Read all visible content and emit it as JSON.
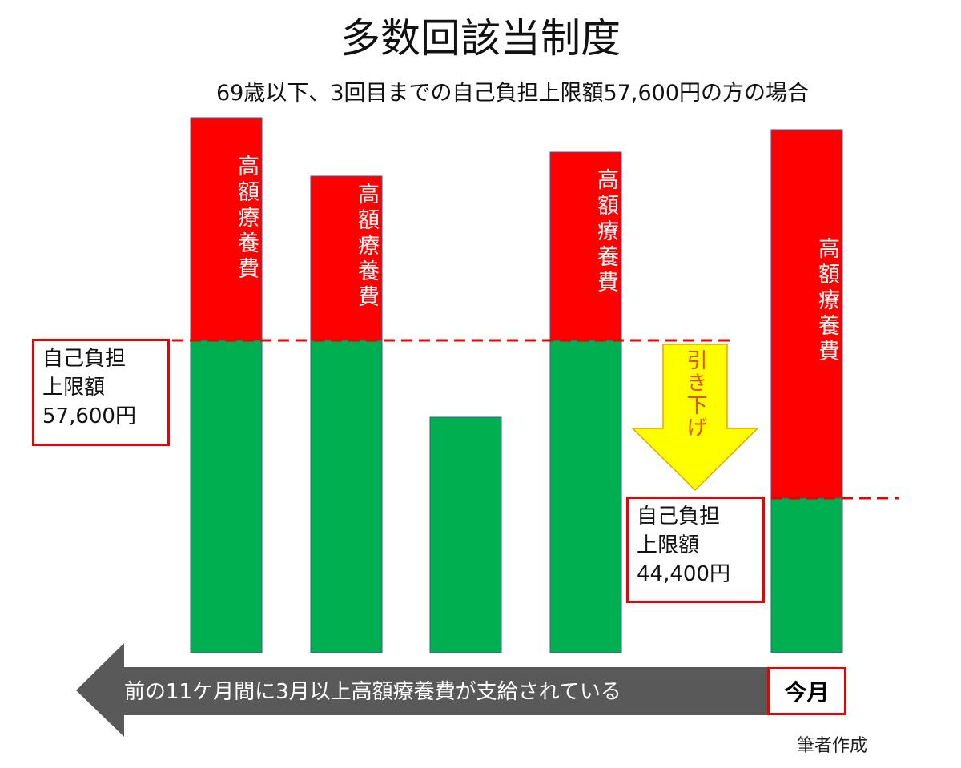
{
  "title": "多数回該当制度",
  "subtitle": "69歳以下、3回目までの自己負担上限額57,600円の方の場合",
  "bar_labels": [
    "高額療養費",
    "高額療養費",
    "高額療養費",
    "高額療養費"
  ],
  "limit_boxes": [
    {
      "lines": [
        "自己負担",
        "上限額",
        "57,600円"
      ]
    },
    {
      "lines": [
        "自己負担",
        "上限額",
        "44,400円"
      ]
    }
  ],
  "arrow_label": "引き下げ",
  "period_label": "前の11ケ月間に3月以上高額療養費が支給されている",
  "current_month": "今月",
  "credit": "筆者作成"
}
